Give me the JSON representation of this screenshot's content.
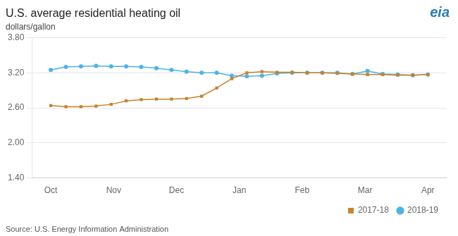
{
  "chart_data": {
    "type": "line",
    "title": "U.S. average residential heating oil",
    "ylabel": "dollars/gallon",
    "source": "Source: U.S. Energy Information Administration",
    "annotations": [
      {
        "text": "eia",
        "color": "#2a7ab5"
      }
    ],
    "x": [
      0,
      0.24,
      0.48,
      0.72,
      0.96,
      1.2,
      1.44,
      1.68,
      1.92,
      2.16,
      2.4,
      2.64,
      2.88,
      3.12,
      3.36,
      3.6,
      3.84,
      4.08,
      4.32,
      4.56,
      4.8,
      5.04,
      5.28,
      5.52,
      5.76,
      6.0
    ],
    "xlim": [
      -0.3,
      6.3
    ],
    "xticks": [
      {
        "value": 0,
        "label": "Oct"
      },
      {
        "value": 1,
        "label": "Nov"
      },
      {
        "value": 2,
        "label": "Dec"
      },
      {
        "value": 3,
        "label": "Jan"
      },
      {
        "value": 4,
        "label": "Feb"
      },
      {
        "value": 5,
        "label": "Mar"
      },
      {
        "value": 6,
        "label": "Apr"
      }
    ],
    "ylim": [
      1.4,
      3.8
    ],
    "yticks": [
      {
        "value": 1.4,
        "label": "1.40"
      },
      {
        "value": 2,
        "label": "2.00"
      },
      {
        "value": 2.6,
        "label": "2.60"
      },
      {
        "value": 3.2,
        "label": "3.20"
      },
      {
        "value": 3.8,
        "label": "3.80"
      }
    ],
    "grid": "y",
    "legend": "lower right",
    "series": [
      {
        "name": "2017-18",
        "color": "#c8822a",
        "marker": "square",
        "values": [
          2.64,
          2.62,
          2.62,
          2.63,
          2.66,
          2.72,
          2.74,
          2.75,
          2.75,
          2.76,
          2.8,
          2.94,
          3.1,
          3.2,
          3.22,
          3.21,
          3.21,
          3.2,
          3.2,
          3.19,
          3.18,
          3.17,
          3.17,
          3.16,
          3.16,
          3.17
        ]
      },
      {
        "name": "2018-19",
        "color": "#4db3e6",
        "marker": "circle",
        "values": [
          3.25,
          3.3,
          3.31,
          3.32,
          3.31,
          3.31,
          3.3,
          3.28,
          3.25,
          3.22,
          3.2,
          3.2,
          3.15,
          3.14,
          3.15,
          3.19,
          3.2,
          3.2,
          3.2,
          3.2,
          3.18,
          3.23,
          3.18,
          3.17,
          3.16,
          3.17
        ]
      }
    ]
  }
}
